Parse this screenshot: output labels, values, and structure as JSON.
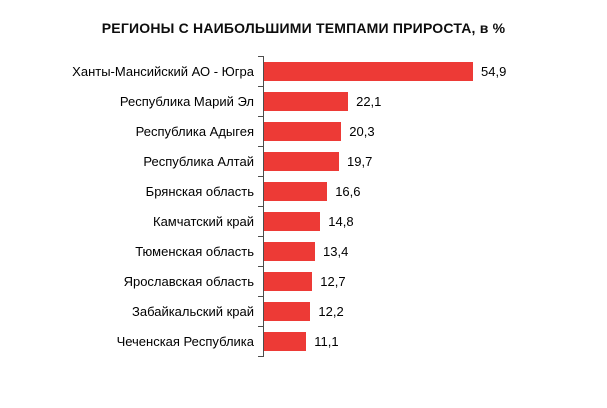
{
  "chart_data": {
    "type": "bar",
    "orientation": "horizontal",
    "title": "РЕГИОНЫ С НАИБОЛЬШИМИ ТЕМПАМИ ПРИРОСТА, в %",
    "categories": [
      "Ханты-Мансийский АО - Югра",
      "Республика Марий Эл",
      "Республика Адыгея",
      "Республика Алтай",
      "Брянская область",
      "Камчатский край",
      "Тюменская область",
      "Ярославская область",
      "Забайкальский край",
      "Чеченская Республика"
    ],
    "values": [
      54.9,
      22.1,
      20.3,
      19.7,
      16.6,
      14.8,
      13.4,
      12.7,
      12.2,
      11.1
    ],
    "value_labels": [
      "54,9",
      "22,1",
      "20,3",
      "19,7",
      "16,6",
      "14,8",
      "13,4",
      "12,7",
      "12,2",
      "11,1"
    ],
    "xlabel": "",
    "ylabel": "",
    "xlim": [
      0,
      57
    ],
    "grid": false,
    "legend": false,
    "data_labels": "end-of-bar",
    "bar_color": "#ED3A36",
    "axis_color": "#4D4D4D",
    "background_color": "#FFFFFF"
  }
}
